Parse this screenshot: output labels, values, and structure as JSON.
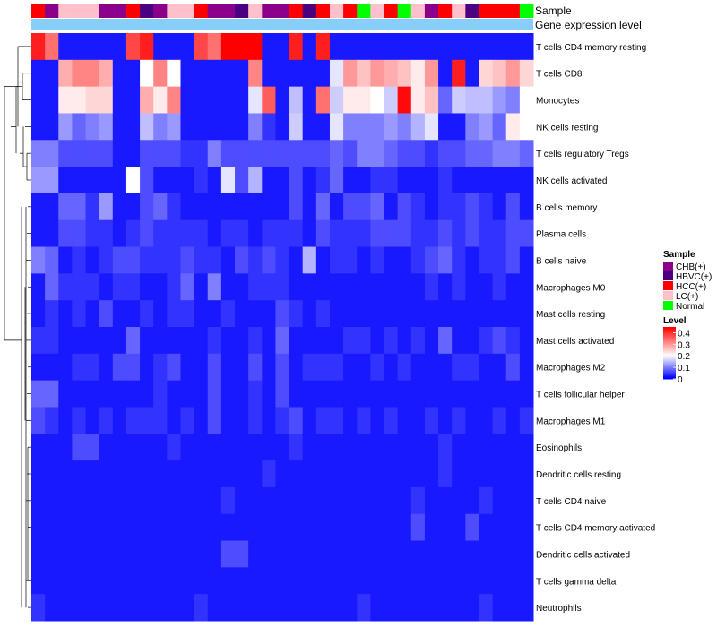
{
  "chart_data": {
    "type": "heatmap",
    "title": "",
    "annotation_titles": {
      "sample": "Sample",
      "expression": "Gene expression level"
    },
    "columns_count": 37,
    "sample_groups": [
      "CHB(+)",
      "HBVC(+)",
      "HCC(+)",
      "LC(+)",
      "Normal"
    ],
    "group_colors": {
      "CHB(+)": "#8B008B",
      "HBVC(+)": "#4B0082",
      "HCC(+)": "#FF0000",
      "LC(+)": "#FFC0CB",
      "Normal": "#00FF00"
    },
    "sample_annotation": [
      "HCC(+)",
      "CHB(+)",
      "LC(+)",
      "LC(+)",
      "LC(+)",
      "CHB(+)",
      "CHB(+)",
      "HCC(+)",
      "HBVC(+)",
      "CHB(+)",
      "LC(+)",
      "LC(+)",
      "HCC(+)",
      "CHB(+)",
      "CHB(+)",
      "HBVC(+)",
      "LC(+)",
      "CHB(+)",
      "CHB(+)",
      "HCC(+)",
      "HBVC(+)",
      "HCC(+)",
      "LC(+)",
      "HCC(+)",
      "Normal",
      "LC(+)",
      "HCC(+)",
      "Normal",
      "LC(+)",
      "CHB(+)",
      "HCC(+)",
      "LC(+)",
      "HBVC(+)",
      "HCC(+)",
      "HCC(+)",
      "HCC(+)",
      "Normal"
    ],
    "expression_bar_color": "#87CEFA",
    "rows": [
      "T cells CD4 memory resting",
      "T cells CD8",
      "Monocytes",
      "NK cells resting",
      "T cells regulatory  Tregs",
      "NK cells activated",
      "B cells memory",
      "Plasma cells",
      "B cells naive",
      "Macrophages M0",
      "Mast cells resting",
      "Mast cells activated",
      "Macrophages M2",
      "T cells follicular helper",
      "Macrophages M1",
      "Eosinophils",
      "Dendritic cells resting",
      "T cells CD4 naive",
      "T cells CD4 memory activated",
      "Dendritic cells activated",
      "T cells gamma delta",
      "Neutrophils"
    ],
    "values": [
      [
        0.42,
        0.34,
        0.02,
        0.02,
        0.02,
        0.02,
        0.02,
        0.38,
        0.42,
        0.02,
        0.02,
        0.02,
        0.38,
        0.34,
        0.45,
        0.45,
        0.45,
        0.02,
        0.02,
        0.42,
        0.02,
        0.42,
        0.02,
        0.02,
        0.02,
        0.02,
        0.02,
        0.02,
        0.02,
        0.02,
        0.02,
        0.02,
        0.02,
        0.02,
        0.02,
        0.02,
        0.02
      ],
      [
        0.02,
        0.02,
        0.28,
        0.32,
        0.32,
        0.28,
        0.02,
        0.02,
        0.2,
        0.32,
        0.2,
        0.02,
        0.02,
        0.02,
        0.02,
        0.02,
        0.32,
        0.02,
        0.02,
        0.02,
        0.02,
        0.02,
        0.18,
        0.3,
        0.26,
        0.3,
        0.28,
        0.26,
        0.22,
        0.3,
        0.02,
        0.42,
        0.02,
        0.24,
        0.26,
        0.3,
        0.24
      ],
      [
        0.02,
        0.02,
        0.22,
        0.22,
        0.24,
        0.24,
        0.02,
        0.02,
        0.28,
        0.22,
        0.32,
        0.02,
        0.02,
        0.02,
        0.02,
        0.02,
        0.18,
        0.36,
        0.02,
        0.15,
        0.02,
        0.34,
        0.16,
        0.22,
        0.22,
        0.2,
        0.16,
        0.44,
        0.22,
        0.26,
        0.08,
        0.16,
        0.15,
        0.15,
        0.12,
        0.1,
        0.2
      ],
      [
        0.02,
        0.02,
        0.12,
        0.08,
        0.1,
        0.12,
        0.02,
        0.02,
        0.15,
        0.1,
        0.12,
        0.02,
        0.02,
        0.02,
        0.02,
        0.02,
        0.1,
        0.04,
        0.02,
        0.16,
        0.02,
        0.02,
        0.18,
        0.1,
        0.1,
        0.1,
        0.12,
        0.1,
        0.14,
        0.18,
        0.02,
        0.02,
        0.1,
        0.12,
        0.08,
        0.22,
        0.2
      ],
      [
        0.1,
        0.1,
        0.06,
        0.06,
        0.06,
        0.06,
        0.02,
        0.02,
        0.06,
        0.06,
        0.06,
        0.04,
        0.04,
        0.1,
        0.06,
        0.06,
        0.06,
        0.06,
        0.06,
        0.06,
        0.06,
        0.06,
        0.08,
        0.06,
        0.1,
        0.1,
        0.08,
        0.06,
        0.06,
        0.04,
        0.06,
        0.06,
        0.08,
        0.08,
        0.1,
        0.1,
        0.08
      ],
      [
        0.12,
        0.12,
        0.02,
        0.02,
        0.02,
        0.02,
        0.02,
        0.2,
        0.06,
        0.02,
        0.02,
        0.02,
        0.04,
        0.02,
        0.18,
        0.06,
        0.14,
        0.02,
        0.02,
        0.06,
        0.02,
        0.04,
        0.08,
        0.02,
        0.02,
        0.04,
        0.04,
        0.02,
        0.02,
        0.02,
        0.04,
        0.02,
        0.02,
        0.02,
        0.02,
        0.02,
        0.02
      ],
      [
        0.02,
        0.02,
        0.08,
        0.08,
        0.04,
        0.12,
        0.02,
        0.02,
        0.06,
        0.08,
        0.04,
        0.02,
        0.02,
        0.02,
        0.02,
        0.02,
        0.02,
        0.02,
        0.02,
        0.06,
        0.02,
        0.08,
        0.02,
        0.06,
        0.06,
        0.08,
        0.02,
        0.06,
        0.04,
        0.02,
        0.04,
        0.04,
        0.06,
        0.04,
        0.02,
        0.06,
        0.02
      ],
      [
        0.02,
        0.02,
        0.06,
        0.06,
        0.04,
        0.04,
        0.02,
        0.04,
        0.06,
        0.04,
        0.04,
        0.04,
        0.04,
        0.02,
        0.04,
        0.04,
        0.02,
        0.04,
        0.04,
        0.04,
        0.02,
        0.06,
        0.04,
        0.04,
        0.04,
        0.06,
        0.06,
        0.06,
        0.04,
        0.04,
        0.06,
        0.04,
        0.06,
        0.04,
        0.04,
        0.06,
        0.06
      ],
      [
        0.1,
        0.08,
        0.02,
        0.04,
        0.02,
        0.04,
        0.06,
        0.06,
        0.04,
        0.04,
        0.04,
        0.06,
        0.04,
        0.04,
        0.02,
        0.06,
        0.04,
        0.06,
        0.04,
        0.02,
        0.14,
        0.02,
        0.04,
        0.04,
        0.02,
        0.04,
        0.02,
        0.02,
        0.04,
        0.06,
        0.08,
        0.04,
        0.02,
        0.04,
        0.04,
        0.06,
        0.02
      ],
      [
        0.02,
        0.08,
        0.04,
        0.04,
        0.04,
        0.02,
        0.04,
        0.04,
        0.02,
        0.02,
        0.04,
        0.08,
        0.02,
        0.1,
        0.02,
        0.02,
        0.04,
        0.04,
        0.04,
        0.02,
        0.02,
        0.02,
        0.02,
        0.02,
        0.02,
        0.02,
        0.02,
        0.02,
        0.02,
        0.04,
        0.02,
        0.04,
        0.02,
        0.02,
        0.04,
        0.02,
        0.02
      ],
      [
        0.02,
        0.04,
        0.02,
        0.04,
        0.02,
        0.06,
        0.02,
        0.02,
        0.04,
        0.02,
        0.04,
        0.04,
        0.02,
        0.02,
        0.04,
        0.02,
        0.02,
        0.02,
        0.06,
        0.04,
        0.02,
        0.04,
        0.02,
        0.02,
        0.02,
        0.02,
        0.02,
        0.02,
        0.02,
        0.02,
        0.02,
        0.02,
        0.02,
        0.02,
        0.02,
        0.02,
        0.02
      ],
      [
        0.04,
        0.04,
        0.02,
        0.02,
        0.02,
        0.02,
        0.02,
        0.08,
        0.02,
        0.02,
        0.02,
        0.02,
        0.02,
        0.04,
        0.02,
        0.02,
        0.04,
        0.02,
        0.08,
        0.02,
        0.02,
        0.02,
        0.02,
        0.04,
        0.04,
        0.02,
        0.04,
        0.02,
        0.04,
        0.02,
        0.08,
        0.02,
        0.02,
        0.04,
        0.06,
        0.04,
        0.02
      ],
      [
        0.02,
        0.02,
        0.02,
        0.04,
        0.04,
        0.02,
        0.06,
        0.06,
        0.02,
        0.04,
        0.06,
        0.02,
        0.02,
        0.06,
        0.02,
        0.02,
        0.06,
        0.02,
        0.06,
        0.02,
        0.04,
        0.04,
        0.04,
        0.02,
        0.02,
        0.04,
        0.02,
        0.04,
        0.02,
        0.02,
        0.02,
        0.04,
        0.04,
        0.02,
        0.02,
        0.06,
        0.02
      ],
      [
        0.08,
        0.08,
        0.02,
        0.02,
        0.02,
        0.02,
        0.02,
        0.02,
        0.02,
        0.04,
        0.02,
        0.02,
        0.02,
        0.06,
        0.02,
        0.02,
        0.04,
        0.02,
        0.06,
        0.02,
        0.02,
        0.02,
        0.02,
        0.02,
        0.02,
        0.02,
        0.02,
        0.02,
        0.02,
        0.02,
        0.02,
        0.02,
        0.02,
        0.02,
        0.02,
        0.02,
        0.02
      ],
      [
        0.06,
        0.04,
        0.02,
        0.04,
        0.02,
        0.04,
        0.02,
        0.04,
        0.04,
        0.04,
        0.02,
        0.04,
        0.02,
        0.06,
        0.02,
        0.02,
        0.04,
        0.02,
        0.04,
        0.06,
        0.02,
        0.04,
        0.04,
        0.02,
        0.04,
        0.02,
        0.04,
        0.02,
        0.02,
        0.04,
        0.02,
        0.04,
        0.02,
        0.02,
        0.04,
        0.02,
        0.04
      ],
      [
        0.02,
        0.02,
        0.02,
        0.06,
        0.06,
        0.02,
        0.02,
        0.02,
        0.02,
        0.02,
        0.04,
        0.02,
        0.02,
        0.02,
        0.02,
        0.02,
        0.02,
        0.02,
        0.02,
        0.04,
        0.02,
        0.02,
        0.02,
        0.02,
        0.02,
        0.02,
        0.02,
        0.02,
        0.02,
        0.02,
        0.04,
        0.02,
        0.02,
        0.02,
        0.02,
        0.02,
        0.02
      ],
      [
        0.02,
        0.02,
        0.02,
        0.02,
        0.02,
        0.02,
        0.02,
        0.02,
        0.02,
        0.02,
        0.02,
        0.02,
        0.02,
        0.02,
        0.02,
        0.02,
        0.02,
        0.04,
        0.02,
        0.02,
        0.02,
        0.02,
        0.02,
        0.02,
        0.02,
        0.02,
        0.02,
        0.02,
        0.02,
        0.02,
        0.04,
        0.02,
        0.02,
        0.02,
        0.02,
        0.02,
        0.02
      ],
      [
        0.02,
        0.02,
        0.02,
        0.02,
        0.02,
        0.02,
        0.02,
        0.02,
        0.02,
        0.02,
        0.02,
        0.02,
        0.02,
        0.02,
        0.04,
        0.02,
        0.02,
        0.02,
        0.02,
        0.02,
        0.02,
        0.02,
        0.02,
        0.02,
        0.02,
        0.02,
        0.02,
        0.02,
        0.04,
        0.02,
        0.02,
        0.02,
        0.02,
        0.04,
        0.02,
        0.02,
        0.02
      ],
      [
        0.02,
        0.02,
        0.02,
        0.02,
        0.02,
        0.02,
        0.02,
        0.02,
        0.02,
        0.02,
        0.02,
        0.02,
        0.02,
        0.02,
        0.02,
        0.02,
        0.02,
        0.02,
        0.02,
        0.02,
        0.02,
        0.02,
        0.02,
        0.02,
        0.02,
        0.02,
        0.02,
        0.02,
        0.06,
        0.02,
        0.02,
        0.02,
        0.06,
        0.02,
        0.02,
        0.02,
        0.02
      ],
      [
        0.02,
        0.02,
        0.02,
        0.02,
        0.02,
        0.02,
        0.02,
        0.02,
        0.02,
        0.02,
        0.02,
        0.02,
        0.02,
        0.02,
        0.06,
        0.06,
        0.02,
        0.02,
        0.02,
        0.02,
        0.02,
        0.02,
        0.02,
        0.02,
        0.02,
        0.02,
        0.02,
        0.02,
        0.02,
        0.02,
        0.02,
        0.02,
        0.02,
        0.02,
        0.02,
        0.02,
        0.02
      ],
      [
        0.02,
        0.02,
        0.02,
        0.02,
        0.02,
        0.02,
        0.02,
        0.02,
        0.02,
        0.02,
        0.02,
        0.02,
        0.02,
        0.02,
        0.02,
        0.02,
        0.02,
        0.02,
        0.02,
        0.02,
        0.02,
        0.02,
        0.02,
        0.02,
        0.02,
        0.02,
        0.02,
        0.02,
        0.02,
        0.02,
        0.02,
        0.02,
        0.02,
        0.02,
        0.02,
        0.02,
        0.02
      ],
      [
        0.04,
        0.02,
        0.02,
        0.02,
        0.02,
        0.02,
        0.02,
        0.02,
        0.02,
        0.02,
        0.02,
        0.02,
        0.04,
        0.02,
        0.02,
        0.02,
        0.02,
        0.02,
        0.02,
        0.02,
        0.02,
        0.02,
        0.02,
        0.02,
        0.04,
        0.02,
        0.02,
        0.02,
        0.02,
        0.02,
        0.02,
        0.02,
        0.02,
        0.04,
        0.02,
        0.02,
        0.02
      ]
    ],
    "color_scale": {
      "min": 0,
      "max": 0.45,
      "low_color": "#0000FF",
      "mid_color": "#FFFFFF",
      "high_color": "#FF0000",
      "mid_value": 0.2
    },
    "legend_sample": {
      "title": "Sample",
      "items": [
        "CHB(+)",
        "HBVC(+)",
        "HCC(+)",
        "LC(+)",
        "Normal"
      ]
    },
    "legend_level": {
      "title": "Level",
      "ticks": [
        "0.4",
        "0.3",
        "0.2",
        "0.1",
        "0"
      ],
      "tick_values": [
        0.4,
        0.3,
        0.2,
        0.1,
        0
      ]
    }
  }
}
